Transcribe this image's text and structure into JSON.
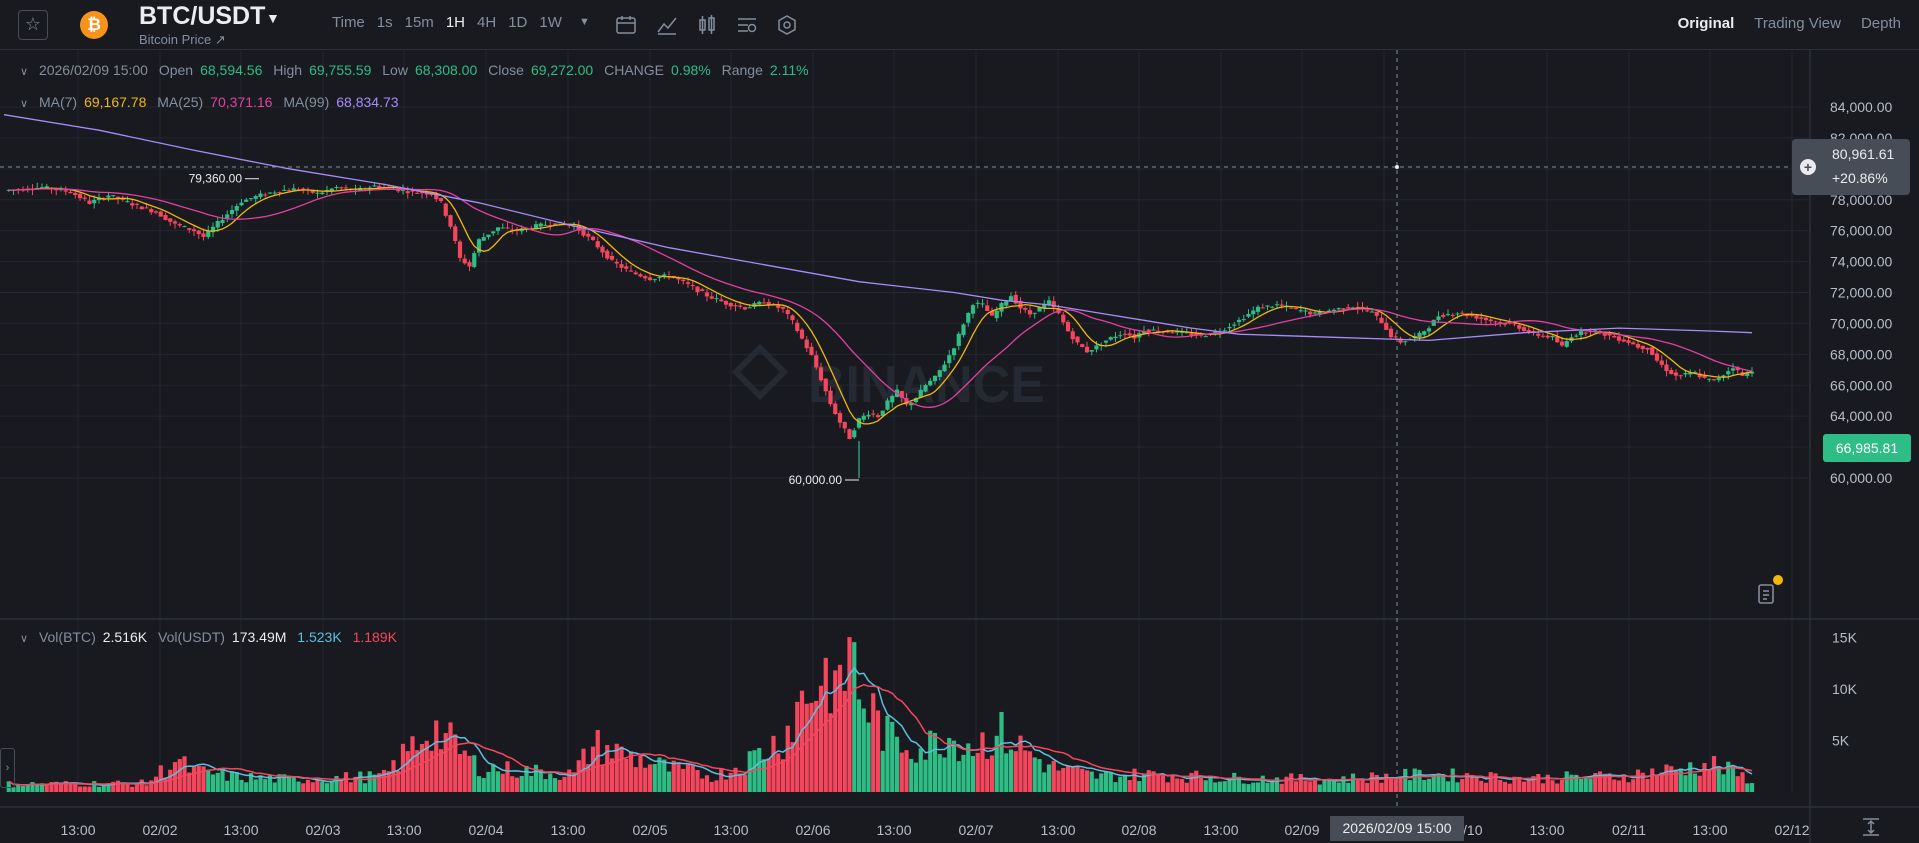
{
  "header": {
    "pair": "BTC/USDT",
    "subtitle": "Bitcoin Price ↗",
    "coin_symbol": "₿",
    "intervals": [
      "Time",
      "1s",
      "15m",
      "1H",
      "4H",
      "1D",
      "1W"
    ],
    "active_interval": "1H",
    "views": [
      "Original",
      "Trading View",
      "Depth"
    ],
    "active_view": "Original"
  },
  "ohlc": {
    "date": "2026/02/09 15:00",
    "open_label": "Open",
    "open": "68,594.56",
    "high_label": "High",
    "high": "69,755.59",
    "low_label": "Low",
    "low": "68,308.00",
    "close_label": "Close",
    "close": "69,272.00",
    "change_label": "CHANGE",
    "change": "0.98%",
    "range_label": "Range",
    "range": "2.11%"
  },
  "ma_legend": {
    "ma7_label": "MA(7)",
    "ma7": "69,167.78",
    "ma25_label": "MA(25)",
    "ma25": "70,371.16",
    "ma99_label": "MA(99)",
    "ma99": "68,834.73"
  },
  "vol_legend": {
    "vol_btc_label": "Vol(BTC)",
    "vol_btc": "2.516K",
    "vol_usdt_label": "Vol(USDT)",
    "vol_usdt": "173.49M",
    "ma_a": "1.523K",
    "ma_b": "1.189K"
  },
  "crosshair": {
    "price": "80,961.61",
    "pct": "+20.86%",
    "time": "2026/02/09 15:00"
  },
  "last_price": "66,985.81",
  "watermark": "BINANCE",
  "colors": {
    "up": "#2ebd85",
    "down": "#f6465d",
    "ma7": "#f0b90b",
    "ma25": "#e040a0",
    "ma99": "#a78bfa",
    "vol_ma1": "#5bc0de",
    "vol_ma2": "#f6465d",
    "bg": "#181a20",
    "grid": "#23272e"
  },
  "chart_data": {
    "type": "candlestick",
    "interval": "1H",
    "x_ticks": [
      "13:00",
      "02/02",
      "13:00",
      "02/03",
      "13:00",
      "02/04",
      "13:00",
      "02/05",
      "13:00",
      "02/06",
      "13:00",
      "02/07",
      "13:00",
      "02/08",
      "13:00",
      "02/09",
      "13:00",
      "02/10",
      "13:00",
      "02/11",
      "13:00",
      "02/12"
    ],
    "y_ticks": [
      "84,000.00",
      "82,000.00",
      "80,000.00",
      "78,000.00",
      "76,000.00",
      "74,000.00",
      "72,000.00",
      "70,000.00",
      "68,000.00",
      "66,000.00",
      "64,000.00",
      "62,000.00",
      "60,000.00"
    ],
    "ylim": [
      58500,
      86500
    ],
    "vol_ticks": [
      "15K",
      "10K",
      "5K"
    ],
    "vol_ylim": [
      0,
      16000
    ],
    "annotations": {
      "high_label": "79,360.00",
      "low_label": "60,000.00",
      "high": 79360,
      "low": 60000
    },
    "close_path": [
      [
        0,
        78600
      ],
      [
        8,
        78800
      ],
      [
        14,
        78500
      ],
      [
        18,
        77800
      ],
      [
        22,
        78300
      ],
      [
        28,
        77600
      ],
      [
        32,
        77200
      ],
      [
        36,
        76400
      ],
      [
        40,
        76000
      ],
      [
        42,
        75600
      ],
      [
        46,
        76800
      ],
      [
        50,
        77900
      ],
      [
        54,
        78300
      ],
      [
        58,
        78600
      ],
      [
        62,
        78700
      ],
      [
        66,
        78400
      ],
      [
        70,
        78800
      ],
      [
        74,
        78600
      ],
      [
        78,
        78900
      ],
      [
        82,
        78700
      ],
      [
        86,
        78500
      ],
      [
        90,
        78400
      ],
      [
        92,
        77800
      ],
      [
        94,
        76300
      ],
      [
        96,
        74200
      ],
      [
        98,
        73700
      ],
      [
        100,
        75400
      ],
      [
        104,
        76200
      ],
      [
        108,
        76000
      ],
      [
        112,
        76300
      ],
      [
        116,
        76500
      ],
      [
        120,
        76300
      ],
      [
        122,
        75800
      ],
      [
        124,
        75300
      ],
      [
        128,
        74000
      ],
      [
        132,
        73300
      ],
      [
        136,
        72900
      ],
      [
        140,
        73100
      ],
      [
        144,
        72500
      ],
      [
        148,
        71800
      ],
      [
        152,
        71300
      ],
      [
        156,
        71000
      ],
      [
        160,
        71400
      ],
      [
        164,
        70900
      ],
      [
        166,
        70100
      ],
      [
        168,
        69000
      ],
      [
        170,
        67900
      ],
      [
        172,
        66400
      ],
      [
        174,
        64800
      ],
      [
        176,
        63600
      ],
      [
        178,
        62600
      ],
      [
        180,
        63800
      ],
      [
        182,
        64200
      ],
      [
        184,
        64000
      ],
      [
        186,
        64900
      ],
      [
        188,
        65600
      ],
      [
        190,
        64700
      ],
      [
        192,
        65200
      ],
      [
        194,
        66000
      ],
      [
        196,
        66500
      ],
      [
        198,
        67400
      ],
      [
        200,
        68500
      ],
      [
        202,
        70000
      ],
      [
        204,
        71300
      ],
      [
        206,
        71200
      ],
      [
        208,
        70400
      ],
      [
        210,
        71200
      ],
      [
        212,
        71800
      ],
      [
        214,
        71000
      ],
      [
        216,
        70600
      ],
      [
        218,
        71000
      ],
      [
        220,
        71400
      ],
      [
        222,
        70600
      ],
      [
        224,
        69500
      ],
      [
        226,
        68700
      ],
      [
        228,
        68200
      ],
      [
        230,
        68500
      ],
      [
        232,
        68900
      ],
      [
        234,
        69200
      ],
      [
        236,
        69400
      ],
      [
        238,
        69100
      ],
      [
        240,
        69600
      ],
      [
        244,
        69500
      ],
      [
        248,
        69400
      ],
      [
        252,
        69200
      ],
      [
        256,
        69500
      ],
      [
        260,
        70200
      ],
      [
        264,
        71000
      ],
      [
        268,
        71200
      ],
      [
        272,
        70900
      ],
      [
        276,
        70600
      ],
      [
        280,
        70900
      ],
      [
        284,
        71100
      ],
      [
        288,
        70700
      ],
      [
        290,
        70100
      ],
      [
        292,
        69200
      ],
      [
        294,
        68800
      ],
      [
        296,
        69000
      ],
      [
        298,
        69272
      ],
      [
        300,
        69800
      ],
      [
        302,
        70500
      ],
      [
        306,
        70700
      ],
      [
        310,
        70400
      ],
      [
        314,
        70100
      ],
      [
        318,
        69900
      ],
      [
        322,
        69300
      ],
      [
        326,
        69100
      ],
      [
        328,
        68500
      ],
      [
        330,
        69200
      ],
      [
        334,
        69600
      ],
      [
        338,
        69200
      ],
      [
        342,
        68800
      ],
      [
        344,
        68500
      ],
      [
        346,
        68400
      ],
      [
        348,
        67600
      ],
      [
        350,
        67000
      ],
      [
        352,
        66600
      ],
      [
        356,
        66800
      ],
      [
        358,
        66400
      ],
      [
        360,
        66300
      ],
      [
        362,
        66700
      ],
      [
        364,
        67200
      ],
      [
        366,
        66600
      ],
      [
        368,
        66986
      ]
    ],
    "ma99_path": [
      [
        0,
        83500
      ],
      [
        20,
        82500
      ],
      [
        40,
        81200
      ],
      [
        60,
        80000
      ],
      [
        80,
        79000
      ],
      [
        100,
        77800
      ],
      [
        120,
        76300
      ],
      [
        140,
        74900
      ],
      [
        160,
        73800
      ],
      [
        180,
        72700
      ],
      [
        200,
        72000
      ],
      [
        210,
        71500
      ],
      [
        220,
        71200
      ],
      [
        230,
        70700
      ],
      [
        240,
        70200
      ],
      [
        250,
        69700
      ],
      [
        260,
        69300
      ],
      [
        280,
        69100
      ],
      [
        300,
        68900
      ],
      [
        320,
        69400
      ],
      [
        340,
        69700
      ],
      [
        360,
        69500
      ],
      [
        368,
        69400
      ]
    ],
    "volume_path": [
      [
        0,
        800
      ],
      [
        30,
        900
      ],
      [
        36,
        3200
      ],
      [
        40,
        2100
      ],
      [
        50,
        1500
      ],
      [
        60,
        1300
      ],
      [
        80,
        1600
      ],
      [
        90,
        6700
      ],
      [
        100,
        2500
      ],
      [
        120,
        1800
      ],
      [
        124,
        4800
      ],
      [
        140,
        2400
      ],
      [
        150,
        1600
      ],
      [
        156,
        3000
      ],
      [
        164,
        5500
      ],
      [
        168,
        9400
      ],
      [
        174,
        12500
      ],
      [
        176,
        9200
      ],
      [
        178,
        15600
      ],
      [
        180,
        10200
      ],
      [
        186,
        5600
      ],
      [
        194,
        4500
      ],
      [
        198,
        5800
      ],
      [
        204,
        4800
      ],
      [
        210,
        5900
      ],
      [
        220,
        2600
      ],
      [
        230,
        1600
      ],
      [
        240,
        1800
      ],
      [
        260,
        1400
      ],
      [
        280,
        1300
      ],
      [
        300,
        1800
      ],
      [
        320,
        1400
      ],
      [
        340,
        1600
      ],
      [
        360,
        2800
      ],
      [
        368,
        1200
      ]
    ],
    "series": [
      {
        "name": "MA(7)",
        "value": 69167.78
      },
      {
        "name": "MA(25)",
        "value": 70371.16
      },
      {
        "name": "MA(99)",
        "value": 68834.73
      }
    ]
  }
}
